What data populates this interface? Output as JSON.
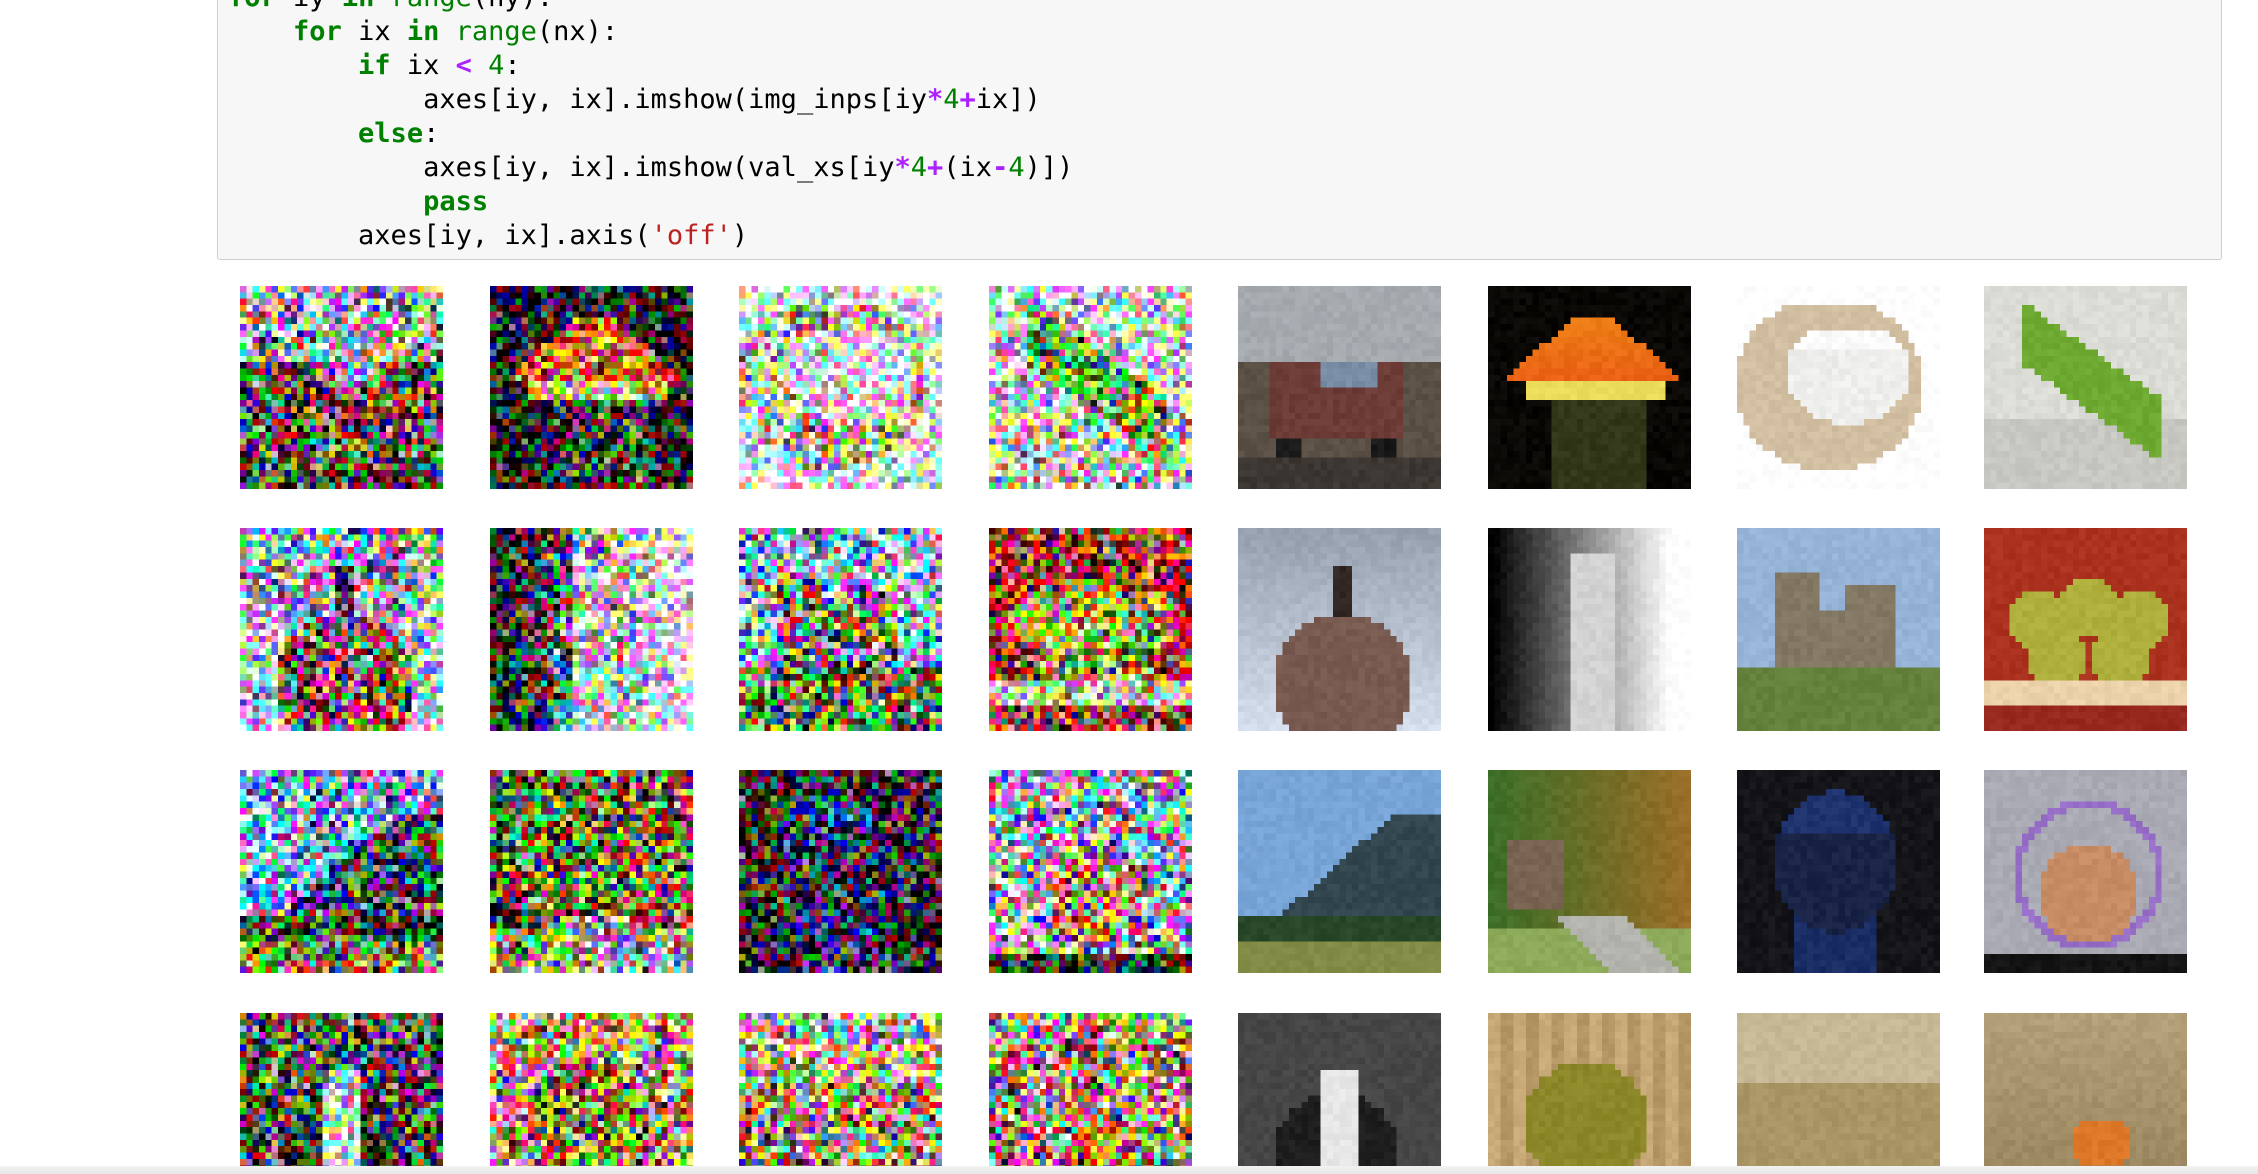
{
  "code": {
    "lines": [
      [
        {
          "t": "for",
          "c": "kw"
        },
        {
          "t": " iy "
        },
        {
          "t": "in",
          "c": "kw"
        },
        {
          "t": " "
        },
        {
          "t": "range",
          "c": "bi"
        },
        {
          "t": "(ny):"
        }
      ],
      [
        {
          "t": "    "
        },
        {
          "t": "for",
          "c": "kw"
        },
        {
          "t": " ix "
        },
        {
          "t": "in",
          "c": "kw"
        },
        {
          "t": " "
        },
        {
          "t": "range",
          "c": "bi"
        },
        {
          "t": "(nx):"
        }
      ],
      [
        {
          "t": "        "
        },
        {
          "t": "if",
          "c": "kw"
        },
        {
          "t": " ix "
        },
        {
          "t": "<",
          "c": "op"
        },
        {
          "t": " "
        },
        {
          "t": "4",
          "c": "num"
        },
        {
          "t": ":"
        }
      ],
      [
        {
          "t": "            axes[iy, ix].imshow(img_inps[iy"
        },
        {
          "t": "*",
          "c": "op"
        },
        {
          "t": "4",
          "c": "num"
        },
        {
          "t": "+",
          "c": "op"
        },
        {
          "t": "ix])"
        }
      ],
      [
        {
          "t": "        "
        },
        {
          "t": "else",
          "c": "kw"
        },
        {
          "t": ":"
        }
      ],
      [
        {
          "t": "            axes[iy, ix].imshow(val_xs[iy"
        },
        {
          "t": "*",
          "c": "op"
        },
        {
          "t": "4",
          "c": "num"
        },
        {
          "t": "+",
          "c": "op"
        },
        {
          "t": "(ix"
        },
        {
          "t": "-",
          "c": "op"
        },
        {
          "t": "4",
          "c": "num"
        },
        {
          "t": ")])"
        }
      ],
      [
        {
          "t": "            "
        },
        {
          "t": "pass",
          "c": "kw"
        }
      ],
      [
        {
          "t": "        axes[iy, ix].axis("
        },
        {
          "t": "'off'",
          "c": "str"
        },
        {
          "t": ")"
        }
      ]
    ]
  },
  "output": {
    "rows": 4,
    "cols": 8,
    "noisy_columns": 4,
    "images": [
      [
        "car-noisy",
        "lamp-noisy",
        "bowl-noisy",
        "lizard-noisy",
        "pickup-truck",
        "orange-lamp",
        "white-bowl",
        "green-lizard"
      ],
      [
        "bird-noisy",
        "bottle-noisy",
        "castle-noisy",
        "pears-noisy",
        "goose",
        "glass-bottle",
        "stone-castle",
        "pears"
      ],
      [
        "mountain-noisy",
        "bridge-noisy",
        "seat-noisy",
        "mouse-noisy",
        "mountain",
        "wooden-bridge",
        "blue-seat",
        "mouse"
      ],
      [
        "skunk-noisy",
        "apple-noisy",
        "tank-noisy",
        "fox-noisy",
        "skunk",
        "apple",
        "tank",
        "fox"
      ]
    ]
  }
}
